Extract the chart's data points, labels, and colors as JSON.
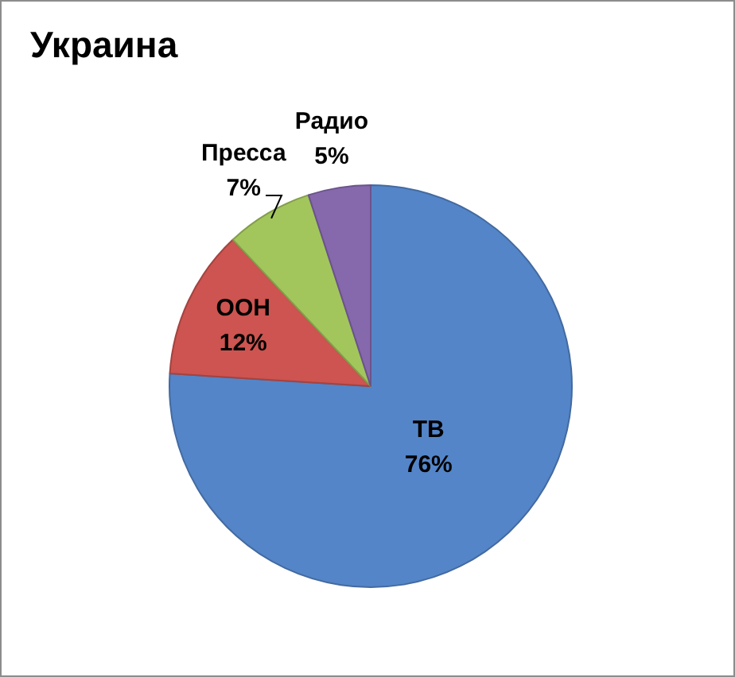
{
  "chart_data": {
    "type": "pie",
    "title": "Украина",
    "categories": [
      "ТВ",
      "ООН",
      "Пресса",
      "Радио"
    ],
    "values": [
      76,
      12,
      7,
      5
    ],
    "colors": [
      "#5485c8",
      "#cd5450",
      "#a2c65c",
      "#8668ad"
    ],
    "value_labels": [
      "76%",
      "12%",
      "7%",
      "5%"
    ],
    "legend": false
  }
}
